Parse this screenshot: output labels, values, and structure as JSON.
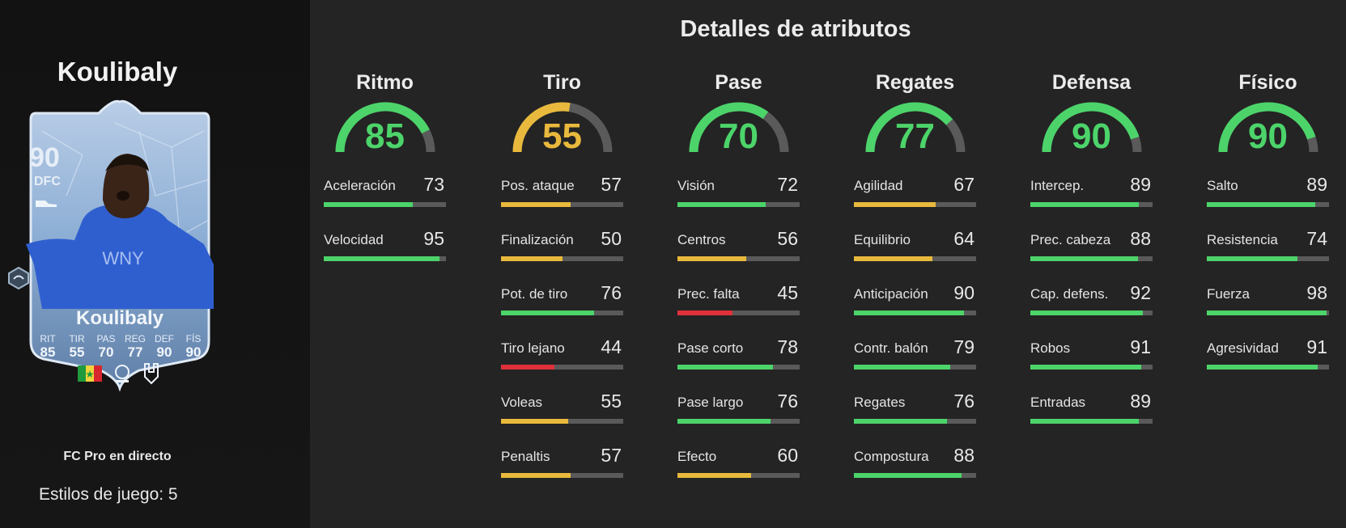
{
  "player": {
    "name": "Koulibaly",
    "edition": "FC Pro en directo",
    "play_styles": "Estilos de juego: 5",
    "card": {
      "rating": "90",
      "position": "DFC",
      "name": "Koulibaly",
      "stats": [
        {
          "label": "RIT",
          "value": "85"
        },
        {
          "label": "TIR",
          "value": "55"
        },
        {
          "label": "PAS",
          "value": "70"
        },
        {
          "label": "REG",
          "value": "77"
        },
        {
          "label": "DEF",
          "value": "90"
        },
        {
          "label": "FÍS",
          "value": "90"
        }
      ],
      "icons": [
        "senegal-flag-icon",
        "league-logo-icon",
        "club-crest-icon"
      ],
      "card_color": "#8fb0d6"
    }
  },
  "attributes_title": "Detalles de atributos",
  "colors": {
    "green": "#4cd46a",
    "yellow": "#e8b93c",
    "red": "#e0303a",
    "track": "#5a5a5a"
  },
  "categories": [
    {
      "name": "Ritmo",
      "value": 85,
      "attributes": [
        {
          "label": "Aceleración",
          "value": 73
        },
        {
          "label": "Velocidad",
          "value": 95
        }
      ]
    },
    {
      "name": "Tiro",
      "value": 55,
      "attributes": [
        {
          "label": "Pos. ataque",
          "value": 57
        },
        {
          "label": "Finalización",
          "value": 50
        },
        {
          "label": "Pot. de tiro",
          "value": 76
        },
        {
          "label": "Tiro lejano",
          "value": 44
        },
        {
          "label": "Voleas",
          "value": 55
        },
        {
          "label": "Penaltis",
          "value": 57
        }
      ]
    },
    {
      "name": "Pase",
      "value": 70,
      "attributes": [
        {
          "label": "Visión",
          "value": 72
        },
        {
          "label": "Centros",
          "value": 56
        },
        {
          "label": "Prec. falta",
          "value": 45
        },
        {
          "label": "Pase corto",
          "value": 78
        },
        {
          "label": "Pase largo",
          "value": 76
        },
        {
          "label": "Efecto",
          "value": 60
        }
      ]
    },
    {
      "name": "Regates",
      "value": 77,
      "attributes": [
        {
          "label": "Agilidad",
          "value": 67
        },
        {
          "label": "Equilibrio",
          "value": 64
        },
        {
          "label": "Anticipación",
          "value": 90
        },
        {
          "label": "Contr. balón",
          "value": 79
        },
        {
          "label": "Regates",
          "value": 76
        },
        {
          "label": "Compostura",
          "value": 88
        }
      ]
    },
    {
      "name": "Defensa",
      "value": 90,
      "attributes": [
        {
          "label": "Intercep.",
          "value": 89
        },
        {
          "label": "Prec. cabeza",
          "value": 88
        },
        {
          "label": "Cap. defens.",
          "value": 92
        },
        {
          "label": "Robos",
          "value": 91
        },
        {
          "label": "Entradas",
          "value": 89
        }
      ]
    },
    {
      "name": "Físico",
      "value": 90,
      "attributes": [
        {
          "label": "Salto",
          "value": 89
        },
        {
          "label": "Resistencia",
          "value": 74
        },
        {
          "label": "Fuerza",
          "value": 98
        },
        {
          "label": "Agresividad",
          "value": 91
        }
      ]
    }
  ]
}
